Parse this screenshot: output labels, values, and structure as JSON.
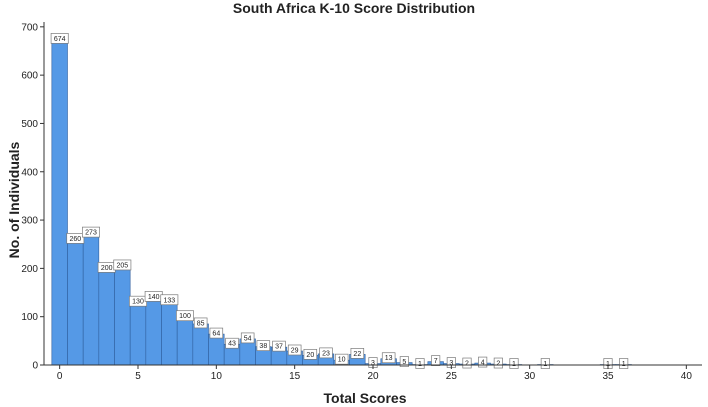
{
  "chart_data": {
    "type": "bar",
    "title": "South Africa K-10 Score Distribution",
    "xlabel": "Total Scores",
    "ylabel": "No. of Individuals",
    "xlim": [
      -1,
      41
    ],
    "ylim": [
      0,
      710
    ],
    "x_ticks": [
      0,
      5,
      10,
      15,
      20,
      25,
      30,
      35,
      40
    ],
    "y_ticks": [
      0,
      100,
      200,
      300,
      400,
      500,
      600,
      700
    ],
    "bar_color": "#5599e6",
    "grid": false,
    "legend": "none",
    "x": [
      0,
      1,
      2,
      3,
      4,
      5,
      6,
      7,
      8,
      9,
      10,
      11,
      12,
      13,
      14,
      15,
      16,
      17,
      18,
      19,
      20,
      21,
      22,
      23,
      24,
      25,
      26,
      27,
      28,
      29,
      31,
      35,
      36
    ],
    "values": [
      674,
      260,
      273,
      200,
      205,
      130,
      140,
      133,
      100,
      85,
      64,
      43,
      54,
      38,
      37,
      29,
      20,
      23,
      10,
      22,
      3,
      13,
      5,
      1,
      7,
      3,
      2,
      4,
      2,
      1,
      1,
      1,
      1
    ]
  }
}
